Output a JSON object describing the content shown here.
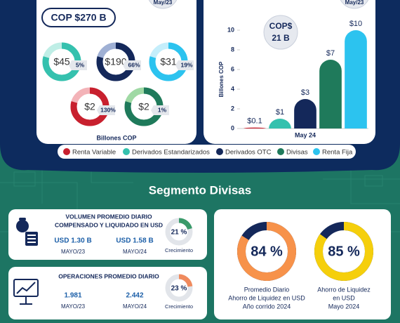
{
  "left_panel": {
    "header": "May/23",
    "total": "COP $270 B",
    "donuts": [
      {
        "label": "$45",
        "pct": "5%",
        "color": "#35c1ae",
        "light": "#bfeee6"
      },
      {
        "label": "$190",
        "pct": "66%",
        "color": "#14285a",
        "light": "#9fb0d4"
      },
      {
        "label": "$31",
        "pct": "19%",
        "color": "#2cc3ef",
        "light": "#c5eefb"
      },
      {
        "label": "$2",
        "pct": "130%",
        "color": "#c8202e",
        "light": "#f3b3b8"
      },
      {
        "label": "$2",
        "pct": "1%",
        "color": "#1f7a5b",
        "light": "#9fd9a4"
      }
    ],
    "axis_label": "Billones COP"
  },
  "chart_data": {
    "type": "bar",
    "header": "May/23",
    "badge": [
      "COP$",
      "21 B"
    ],
    "ylabel": "Billones COP",
    "xlabel": "May 24",
    "categories": [
      "Renta Variable",
      "Derivados Estandarizados",
      "Derivados OTC",
      "Divisas",
      "Renta Fija"
    ],
    "values": [
      0.1,
      1,
      3,
      7,
      10
    ],
    "value_labels": [
      "$0.1",
      "$1",
      "$3",
      "$7",
      "$10"
    ],
    "colors": [
      "#c8202e",
      "#35c1ae",
      "#14285a",
      "#1f7a5b",
      "#2cc3ef"
    ],
    "ylim": [
      0,
      10
    ],
    "yticks": [
      0,
      2,
      4,
      6,
      8,
      10
    ]
  },
  "divisas": {
    "title": "Segmento Divisas",
    "volume": {
      "title_lines": [
        "VOLUMEN PROMEDIO DIARIO",
        "COMPENSADO Y LIQUIDADO EN USD"
      ],
      "items": [
        {
          "value": "USD 1.30 B",
          "period": "MAYO/23"
        },
        {
          "value": "USD 1.58 B",
          "period": "MAYO/24"
        }
      ],
      "growth": 21,
      "growth_label": "21 %",
      "growth_caption": "Crecimiento",
      "color": "#3a9a6a"
    },
    "operations": {
      "title_lines": [
        "OPERACIONES PROMEDIO DIARIO"
      ],
      "items": [
        {
          "value": "1.981",
          "period": "MAYO/23"
        },
        {
          "value": "2.442",
          "period": "MAYO/24"
        }
      ],
      "growth": 23,
      "growth_label": "23 %",
      "growth_caption": "Crecimiento",
      "color": "#f08a5d"
    },
    "savings": [
      {
        "value": 84,
        "label": "84 %",
        "caption": [
          "Promedio Diario",
          "Ahorro de Liquidez en USD",
          "Año corrido 2024"
        ],
        "color": "#f7924a"
      },
      {
        "value": 85,
        "label": "85 %",
        "caption": [
          "Ahorro de Liquidez",
          "en USD",
          "Mayo 2024"
        ],
        "color": "#f5cf0c"
      }
    ]
  }
}
